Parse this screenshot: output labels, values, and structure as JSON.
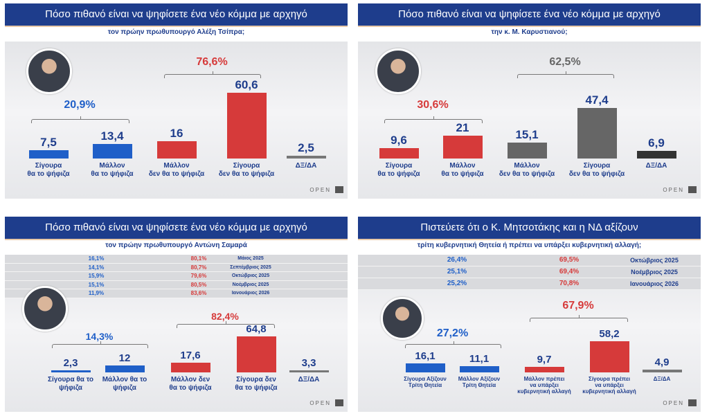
{
  "colors": {
    "navy": "#1e3d8c",
    "blue": "#1f5fc8",
    "red": "#d63a3a",
    "gray": "#666666",
    "dark": "#333333",
    "line": "#777777"
  },
  "chart_data": [
    {
      "type": "bar",
      "title": "Πόσο πιθανό είναι να ψηφίσετε ένα νέο κόμμα με αρχηγό",
      "subtitle": "τον πρώην πρωθυπουργό Αλέξη Τσίπρα;",
      "categories": [
        "Σίγουρα\nθα το ψήφιζα",
        "Μάλλον\nθα το ψήφιζα",
        "Μάλλον\nδεν θα το ψήφιζα",
        "Σίγουρα\nδεν θα το ψήφιζα",
        "ΔΞ/ΔΑ"
      ],
      "values": [
        7.5,
        13.4,
        16,
        60.6,
        2.5
      ],
      "value_labels": [
        "7,5",
        "13,4",
        "16",
        "60,6",
        "2,5"
      ],
      "bar_colors": [
        "#1f5fc8",
        "#1f5fc8",
        "#d63a3a",
        "#d63a3a",
        "#777777"
      ],
      "groups": [
        {
          "label": "20,9%",
          "color": "#1f5fc8",
          "members": [
            0,
            1
          ]
        },
        {
          "label": "76,6%",
          "color": "#d63a3a",
          "members": [
            2,
            3
          ]
        }
      ],
      "photo": "person-photo-tsipras",
      "logo": "OPEN"
    },
    {
      "type": "bar",
      "title": "Πόσο πιθανό είναι να ψηφίσετε ένα νέο κόμμα με αρχηγό",
      "subtitle": "την κ. Μ. Καρυστιανού;",
      "categories": [
        "Σίγουρα\nθα το ψήφιζα",
        "Μάλλον\nθα το ψήφιζα",
        "Μάλλον\nδεν θα το ψήφιζα",
        "Σίγουρα\nδεν θα το ψήφιζα",
        "ΔΞ/ΔΑ"
      ],
      "values": [
        9.6,
        21,
        15.1,
        47.4,
        6.9
      ],
      "value_labels": [
        "9,6",
        "21",
        "15,1",
        "47,4",
        "6,9"
      ],
      "bar_colors": [
        "#d63a3a",
        "#d63a3a",
        "#666666",
        "#666666",
        "#333333"
      ],
      "groups": [
        {
          "label": "30,6%",
          "color": "#d63a3a",
          "members": [
            0,
            1
          ]
        },
        {
          "label": "62,5%",
          "color": "#666666",
          "members": [
            2,
            3
          ]
        }
      ],
      "photo": "person-photo-karystianou",
      "logo": "OPEN"
    },
    {
      "type": "bar",
      "title": "Πόσο πιθανό είναι να ψηφίσετε ένα νέο κόμμα με αρχηγό",
      "subtitle": "τον πρώην πρωθυπουργό Αντώνη Σαμαρά",
      "history": [
        [
          "16,1%",
          "80,1%",
          "Μάιος 2025"
        ],
        [
          "14,1%",
          "80,7%",
          "Σεπτέμβριος 2025"
        ],
        [
          "15,9%",
          "79,6%",
          "Οκτώβριος 2025"
        ],
        [
          "15,1%",
          "80,5%",
          "Νοέμβριος 2025"
        ],
        [
          "11,9%",
          "83,6%",
          "Ιανουάριος 2026"
        ]
      ],
      "categories": [
        "Σίγουρα θα το\nψήφιζα",
        "Μάλλον θα το\nψήφιζα",
        "Μάλλον δεν\nθα το ψήφιζα",
        "Σίγουρα δεν\nθα το ψήφιζα",
        "ΔΞ/ΔΑ"
      ],
      "values": [
        2.3,
        12,
        17.6,
        64.8,
        3.3
      ],
      "value_labels": [
        "2,3",
        "12",
        "17,6",
        "64,8",
        "3,3"
      ],
      "bar_colors": [
        "#1f5fc8",
        "#1f5fc8",
        "#d63a3a",
        "#d63a3a",
        "#777777"
      ],
      "groups": [
        {
          "label": "14,3%",
          "color": "#1f5fc8",
          "members": [
            0,
            1
          ]
        },
        {
          "label": "82,4%",
          "color": "#d63a3a",
          "members": [
            2,
            3
          ]
        }
      ],
      "photo": "person-photo-samaras",
      "logo": "OPEN"
    },
    {
      "type": "bar",
      "title": "Πιστεύετε ότι ο Κ. Μητσοτάκης και η ΝΔ αξίζουν",
      "subtitle": "τρίτη κυβερνητική Θητεία ή πρέπει να υπάρξει κυβερνητική αλλαγή;",
      "history": [
        [
          "26,4%",
          "69,5%",
          "Οκτώβριος 2025"
        ],
        [
          "25,1%",
          "69,4%",
          "Νοέμβριος 2025"
        ],
        [
          "25,2%",
          "70,8%",
          "Ιανουάριος 2026"
        ]
      ],
      "categories": [
        "Σίγουρα Αξίζουν\nΤρίτη Θητεία",
        "Μάλλον Αξίζουν\nΤρίτη Θητεία",
        "Μάλλον πρέπει\nνα υπάρξει\nκυβερνητική αλλαγή",
        "Σίγουρα πρέπει\nνα υπάρξει\nκυβερνητική αλλαγή",
        "ΔΞ/ΔΑ"
      ],
      "values": [
        16.1,
        11.1,
        9.7,
        58.2,
        4.9
      ],
      "value_labels": [
        "16,1",
        "11,1",
        "9,7",
        "58,2",
        "4,9"
      ],
      "bar_colors": [
        "#1f5fc8",
        "#1f5fc8",
        "#d63a3a",
        "#d63a3a",
        "#777777"
      ],
      "groups": [
        {
          "label": "27,2%",
          "color": "#1f5fc8",
          "members": [
            0,
            1
          ]
        },
        {
          "label": "67,9%",
          "color": "#d63a3a",
          "members": [
            2,
            3
          ]
        }
      ],
      "photo": "person-photo-mitsotakis",
      "logo": "OPEN"
    }
  ]
}
